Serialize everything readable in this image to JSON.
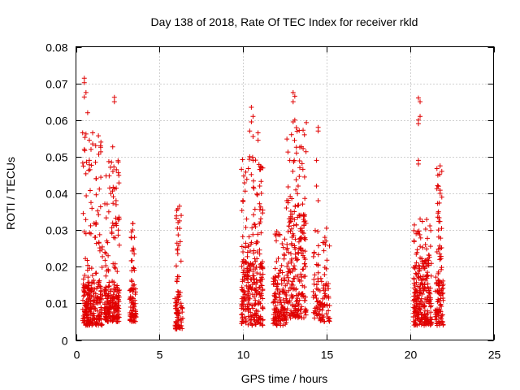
{
  "chart_data": {
    "type": "scatter",
    "title": "Day 138 of 2018, Rate Of TEC Index for receiver rkld",
    "xlabel": "GPS time / hours",
    "ylabel": "ROTI / TECUs",
    "xlim": [
      0,
      25
    ],
    "ylim": [
      0,
      0.08
    ],
    "xticks": [
      0,
      5,
      10,
      15,
      20,
      25
    ],
    "xtick_labels": [
      "0",
      "5",
      "10",
      "15",
      "20",
      "25"
    ],
    "yticks": [
      0,
      0.01,
      0.02,
      0.03,
      0.04,
      0.05,
      0.06,
      0.07,
      0.08
    ],
    "ytick_labels": [
      "0",
      "0.01",
      "0.02",
      "0.03",
      "0.04",
      "0.05",
      "0.06",
      "0.07",
      "0.08"
    ],
    "grid": true,
    "marker": "+",
    "marker_color": "#e00000",
    "series": [
      {
        "name": "ROTI",
        "clusters": [
          {
            "x_range": [
              0.4,
              1.6
            ],
            "y_range": [
              0.004,
              0.016
            ],
            "n": 200
          },
          {
            "x_range": [
              0.4,
              1.6
            ],
            "y_range": [
              0.016,
              0.057
            ],
            "n": 60
          },
          {
            "x_range": [
              1.7,
              2.6
            ],
            "y_range": [
              0.005,
              0.014
            ],
            "n": 150
          },
          {
            "x_range": [
              1.7,
              2.6
            ],
            "y_range": [
              0.014,
              0.049
            ],
            "n": 70
          },
          {
            "x_range": [
              3.2,
              3.6
            ],
            "y_range": [
              0.005,
              0.014
            ],
            "n": 60
          },
          {
            "x_range": [
              3.3,
              3.5
            ],
            "y_range": [
              0.014,
              0.032
            ],
            "n": 20
          },
          {
            "x_range": [
              5.9,
              6.4
            ],
            "y_range": [
              0.003,
              0.012
            ],
            "n": 60
          },
          {
            "x_range": [
              6.0,
              6.3
            ],
            "y_range": [
              0.012,
              0.037
            ],
            "n": 25
          },
          {
            "x_range": [
              9.9,
              11.2
            ],
            "y_range": [
              0.004,
              0.022
            ],
            "n": 220
          },
          {
            "x_range": [
              9.9,
              11.2
            ],
            "y_range": [
              0.022,
              0.05
            ],
            "n": 70
          },
          {
            "x_range": [
              11.8,
              12.6
            ],
            "y_range": [
              0.004,
              0.017
            ],
            "n": 120
          },
          {
            "x_range": [
              11.9,
              12.5
            ],
            "y_range": [
              0.017,
              0.03
            ],
            "n": 25
          },
          {
            "x_range": [
              12.6,
              13.8
            ],
            "y_range": [
              0.006,
              0.035
            ],
            "n": 200
          },
          {
            "x_range": [
              12.6,
              13.8
            ],
            "y_range": [
              0.035,
              0.06
            ],
            "n": 40
          },
          {
            "x_range": [
              14.2,
              15.2
            ],
            "y_range": [
              0.005,
              0.016
            ],
            "n": 80
          },
          {
            "x_range": [
              14.2,
              15.2
            ],
            "y_range": [
              0.016,
              0.03
            ],
            "n": 25
          },
          {
            "x_range": [
              20.2,
              21.3
            ],
            "y_range": [
              0.004,
              0.022
            ],
            "n": 220
          },
          {
            "x_range": [
              20.2,
              21.3
            ],
            "y_range": [
              0.022,
              0.033
            ],
            "n": 30
          },
          {
            "x_range": [
              21.5,
              22.0
            ],
            "y_range": [
              0.004,
              0.018
            ],
            "n": 80
          },
          {
            "x_range": [
              21.6,
              21.9
            ],
            "y_range": [
              0.018,
              0.047
            ],
            "n": 30
          }
        ],
        "points": [
          [
            0.5,
            0.0714
          ],
          [
            0.5,
            0.0702
          ],
          [
            0.6,
            0.0675
          ],
          [
            0.5,
            0.0663
          ],
          [
            0.7,
            0.062
          ],
          [
            0.4,
            0.0565
          ],
          [
            0.6,
            0.0562
          ],
          [
            1.0,
            0.0565
          ],
          [
            0.8,
            0.0545
          ],
          [
            1.0,
            0.0535
          ],
          [
            0.9,
            0.052
          ],
          [
            0.5,
            0.052
          ],
          [
            0.8,
            0.049
          ],
          [
            0.8,
            0.0478
          ],
          [
            1.2,
            0.044
          ],
          [
            0.9,
            0.0375
          ],
          [
            1.3,
            0.0352
          ],
          [
            1.2,
            0.032
          ],
          [
            0.5,
            0.0295
          ],
          [
            0.6,
            0.029
          ],
          [
            2.3,
            0.0662
          ],
          [
            2.3,
            0.065
          ],
          [
            2.2,
            0.0527
          ],
          [
            2.3,
            0.0412
          ],
          [
            2.4,
            0.038
          ],
          [
            3.4,
            0.0318
          ],
          [
            3.5,
            0.028
          ],
          [
            3.3,
            0.028
          ],
          [
            6.2,
            0.0365
          ],
          [
            6.1,
            0.0358
          ],
          [
            6.3,
            0.034
          ],
          [
            6.2,
            0.0325
          ],
          [
            10.5,
            0.0635
          ],
          [
            10.6,
            0.061
          ],
          [
            10.5,
            0.0595
          ],
          [
            10.4,
            0.057
          ],
          [
            10.6,
            0.0555
          ],
          [
            10.9,
            0.0565
          ],
          [
            10.9,
            0.0545
          ],
          [
            10.4,
            0.05
          ],
          [
            10.6,
            0.049
          ],
          [
            11.0,
            0.0465
          ],
          [
            11.1,
            0.04
          ],
          [
            10.0,
            0.038
          ],
          [
            11.0,
            0.042
          ],
          [
            13.0,
            0.0675
          ],
          [
            13.1,
            0.0665
          ],
          [
            13.0,
            0.065
          ],
          [
            13.1,
            0.06
          ],
          [
            13.0,
            0.0595
          ],
          [
            12.9,
            0.056
          ],
          [
            13.2,
            0.051
          ],
          [
            12.8,
            0.049
          ],
          [
            13.4,
            0.047
          ],
          [
            13.3,
            0.042
          ],
          [
            14.5,
            0.058
          ],
          [
            14.5,
            0.057
          ],
          [
            14.4,
            0.049
          ],
          [
            14.4,
            0.042
          ],
          [
            14.5,
            0.038
          ],
          [
            15.0,
            0.0305
          ],
          [
            14.9,
            0.028
          ],
          [
            20.5,
            0.066
          ],
          [
            20.6,
            0.065
          ],
          [
            20.6,
            0.061
          ],
          [
            20.5,
            0.06
          ],
          [
            20.5,
            0.059
          ],
          [
            20.5,
            0.049
          ],
          [
            20.5,
            0.048
          ],
          [
            20.6,
            0.033
          ],
          [
            21.8,
            0.0475
          ],
          [
            21.9,
            0.046
          ],
          [
            21.8,
            0.04
          ],
          [
            21.9,
            0.039
          ],
          [
            21.7,
            0.035
          ],
          [
            21.7,
            0.03
          ],
          [
            21.8,
            0.025
          ]
        ]
      }
    ]
  }
}
